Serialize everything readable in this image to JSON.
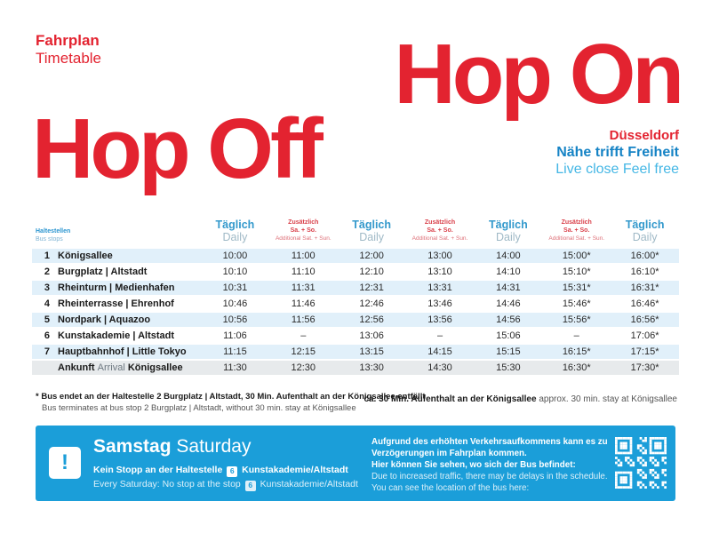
{
  "page": {
    "title_de": "Fahrplan",
    "title_en": "Timetable",
    "hero_line1": "Hop On",
    "hero_line2": "Hop Off",
    "city": "Düsseldorf",
    "slogan_de": "Nähe trifft Freiheit",
    "slogan_en": "Live close Feel free"
  },
  "colors": {
    "brand_red": "#e32330",
    "brand_blue": "#1583c5",
    "light_blue": "#45b7e5",
    "banner_blue": "#1b9ed9",
    "row_stripe": "#e1f0fa",
    "arrival_row_gray": "#e7eaec"
  },
  "table": {
    "stops_label_de": "Haltestellen",
    "stops_label_en": "Bus stops",
    "col_daily_de": "Täglich",
    "col_daily_en": "Daily",
    "col_add_de": "Zusätzlich",
    "col_add_days": "Sa. + So.",
    "col_add_en": "Additional Sat. + Sun.",
    "columns": [
      "daily",
      "additional",
      "daily",
      "additional",
      "daily",
      "additional",
      "daily"
    ],
    "rows": [
      {
        "num": "1",
        "name": "Königsallee",
        "times": [
          "10:00",
          "11:00",
          "12:00",
          "13:00",
          "14:00",
          "15:00*",
          "16:00*"
        ]
      },
      {
        "num": "2",
        "name": "Burgplatz | Altstadt",
        "times": [
          "10:10",
          "11:10",
          "12:10",
          "13:10",
          "14:10",
          "15:10*",
          "16:10*"
        ]
      },
      {
        "num": "3",
        "name": "Rheinturm | Medienhafen",
        "times": [
          "10:31",
          "11:31",
          "12:31",
          "13:31",
          "14:31",
          "15:31*",
          "16:31*"
        ]
      },
      {
        "num": "4",
        "name": "Rheinterrasse | Ehrenhof",
        "times": [
          "10:46",
          "11:46",
          "12:46",
          "13:46",
          "14:46",
          "15:46*",
          "16:46*"
        ]
      },
      {
        "num": "5",
        "name": "Nordpark | Aquazoo",
        "times": [
          "10:56",
          "11:56",
          "12:56",
          "13:56",
          "14:56",
          "15:56*",
          "16:56*"
        ]
      },
      {
        "num": "6",
        "name": "Kunstakademie | Altstadt",
        "times": [
          "11:06",
          "–",
          "13:06",
          "–",
          "15:06",
          "–",
          "17:06*"
        ]
      },
      {
        "num": "7",
        "name": "Hauptbahnhof | Little Tokyo",
        "times": [
          "11:15",
          "12:15",
          "13:15",
          "14:15",
          "15:15",
          "16:15*",
          "17:15*"
        ]
      },
      {
        "num": "",
        "arrival": true,
        "arrival_de": "Ankunft",
        "arrival_en": "Arrival",
        "arrival_stop": "Königsallee",
        "times": [
          "11:30",
          "12:30",
          "13:30",
          "14:30",
          "15:30",
          "16:30*",
          "17:30*"
        ]
      }
    ]
  },
  "footnotes": {
    "left_de": "* Bus endet an der Haltestelle 2 Burgplatz | Altstadt, 30 Min. Aufenthalt an der Königsallee entfällt",
    "left_en": "Bus terminates at bus stop 2 Burgplatz | Altstadt, without 30 min. stay at Königsallee",
    "right_de": "ca. 30 Min. Aufenthalt an der Königsallee",
    "right_en": "approx. 30 min. stay at Königsallee"
  },
  "banner": {
    "alert_glyph": "!",
    "title_de": "Samstag",
    "title_en": "Saturday",
    "line1_prefix": "Kein Stopp an der Haltestelle",
    "stop_badge": "6",
    "line1_suffix": "Kunstakademie/Altstadt",
    "line2_prefix": "Every Saturday: No stop at the stop",
    "line2_suffix": "Kunstakademie/Altstadt",
    "right_bold1": "Aufgrund des erhöhten Verkehrsaufkommens kann es zu",
    "right_bold2": "Verzögerungen im Fahrplan kommen.",
    "right_bold3": "Hier können Sie sehen, wo sich der Bus befindet:",
    "right_reg1": "Due to increased traffic, there may be delays in the schedule.",
    "right_reg2": "You can see the location of the bus here:"
  }
}
